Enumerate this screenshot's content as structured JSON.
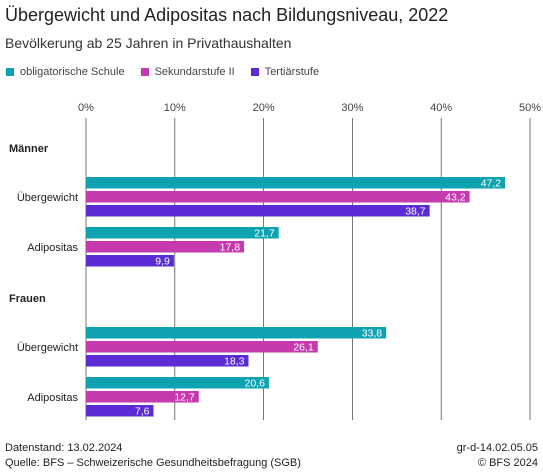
{
  "chart_data": {
    "type": "bar",
    "orientation": "horizontal",
    "title": "Übergewicht und Adipositas nach Bildungsniveau, 2022",
    "subtitle": "Bevölkerung ab 25 Jahren in Privathaushalten",
    "xlim": [
      0,
      50
    ],
    "x_ticks": [
      "0%",
      "10%",
      "20%",
      "30%",
      "40%",
      "50%"
    ],
    "grid": true,
    "legend_position": "top-left",
    "series": [
      {
        "name": "obligatorische Schule",
        "color": "#0fa3b1"
      },
      {
        "name": "Sekundarstufe II",
        "color": "#c63ab0"
      },
      {
        "name": "Tertiärstufe",
        "color": "#5b2bd6"
      }
    ],
    "groups": [
      {
        "name": "Männer",
        "categories": [
          {
            "label": "Übergewicht",
            "values": [
              47.2,
              43.2,
              38.7
            ],
            "labels": [
              "47,2",
              "43,2",
              "38,7"
            ]
          },
          {
            "label": "Adipositas",
            "values": [
              21.7,
              17.8,
              9.9
            ],
            "labels": [
              "21,7",
              "17,8",
              "9,9"
            ]
          }
        ]
      },
      {
        "name": "Frauen",
        "categories": [
          {
            "label": "Übergewicht",
            "values": [
              33.8,
              26.1,
              18.3
            ],
            "labels": [
              "33,8",
              "26,1",
              "18,3"
            ]
          },
          {
            "label": "Adipositas",
            "values": [
              20.6,
              12.7,
              7.6
            ],
            "labels": [
              "20,6",
              "12,7",
              "7,6"
            ]
          }
        ]
      }
    ]
  },
  "footer": {
    "datastand": "Datenstand: 13.02.2024",
    "quelle": "Quelle: BFS – Schweizerische Gesundheitsbefragung (SGB)",
    "id": "gr-d-14.02.05.05",
    "copyright": "© BFS 2024"
  }
}
